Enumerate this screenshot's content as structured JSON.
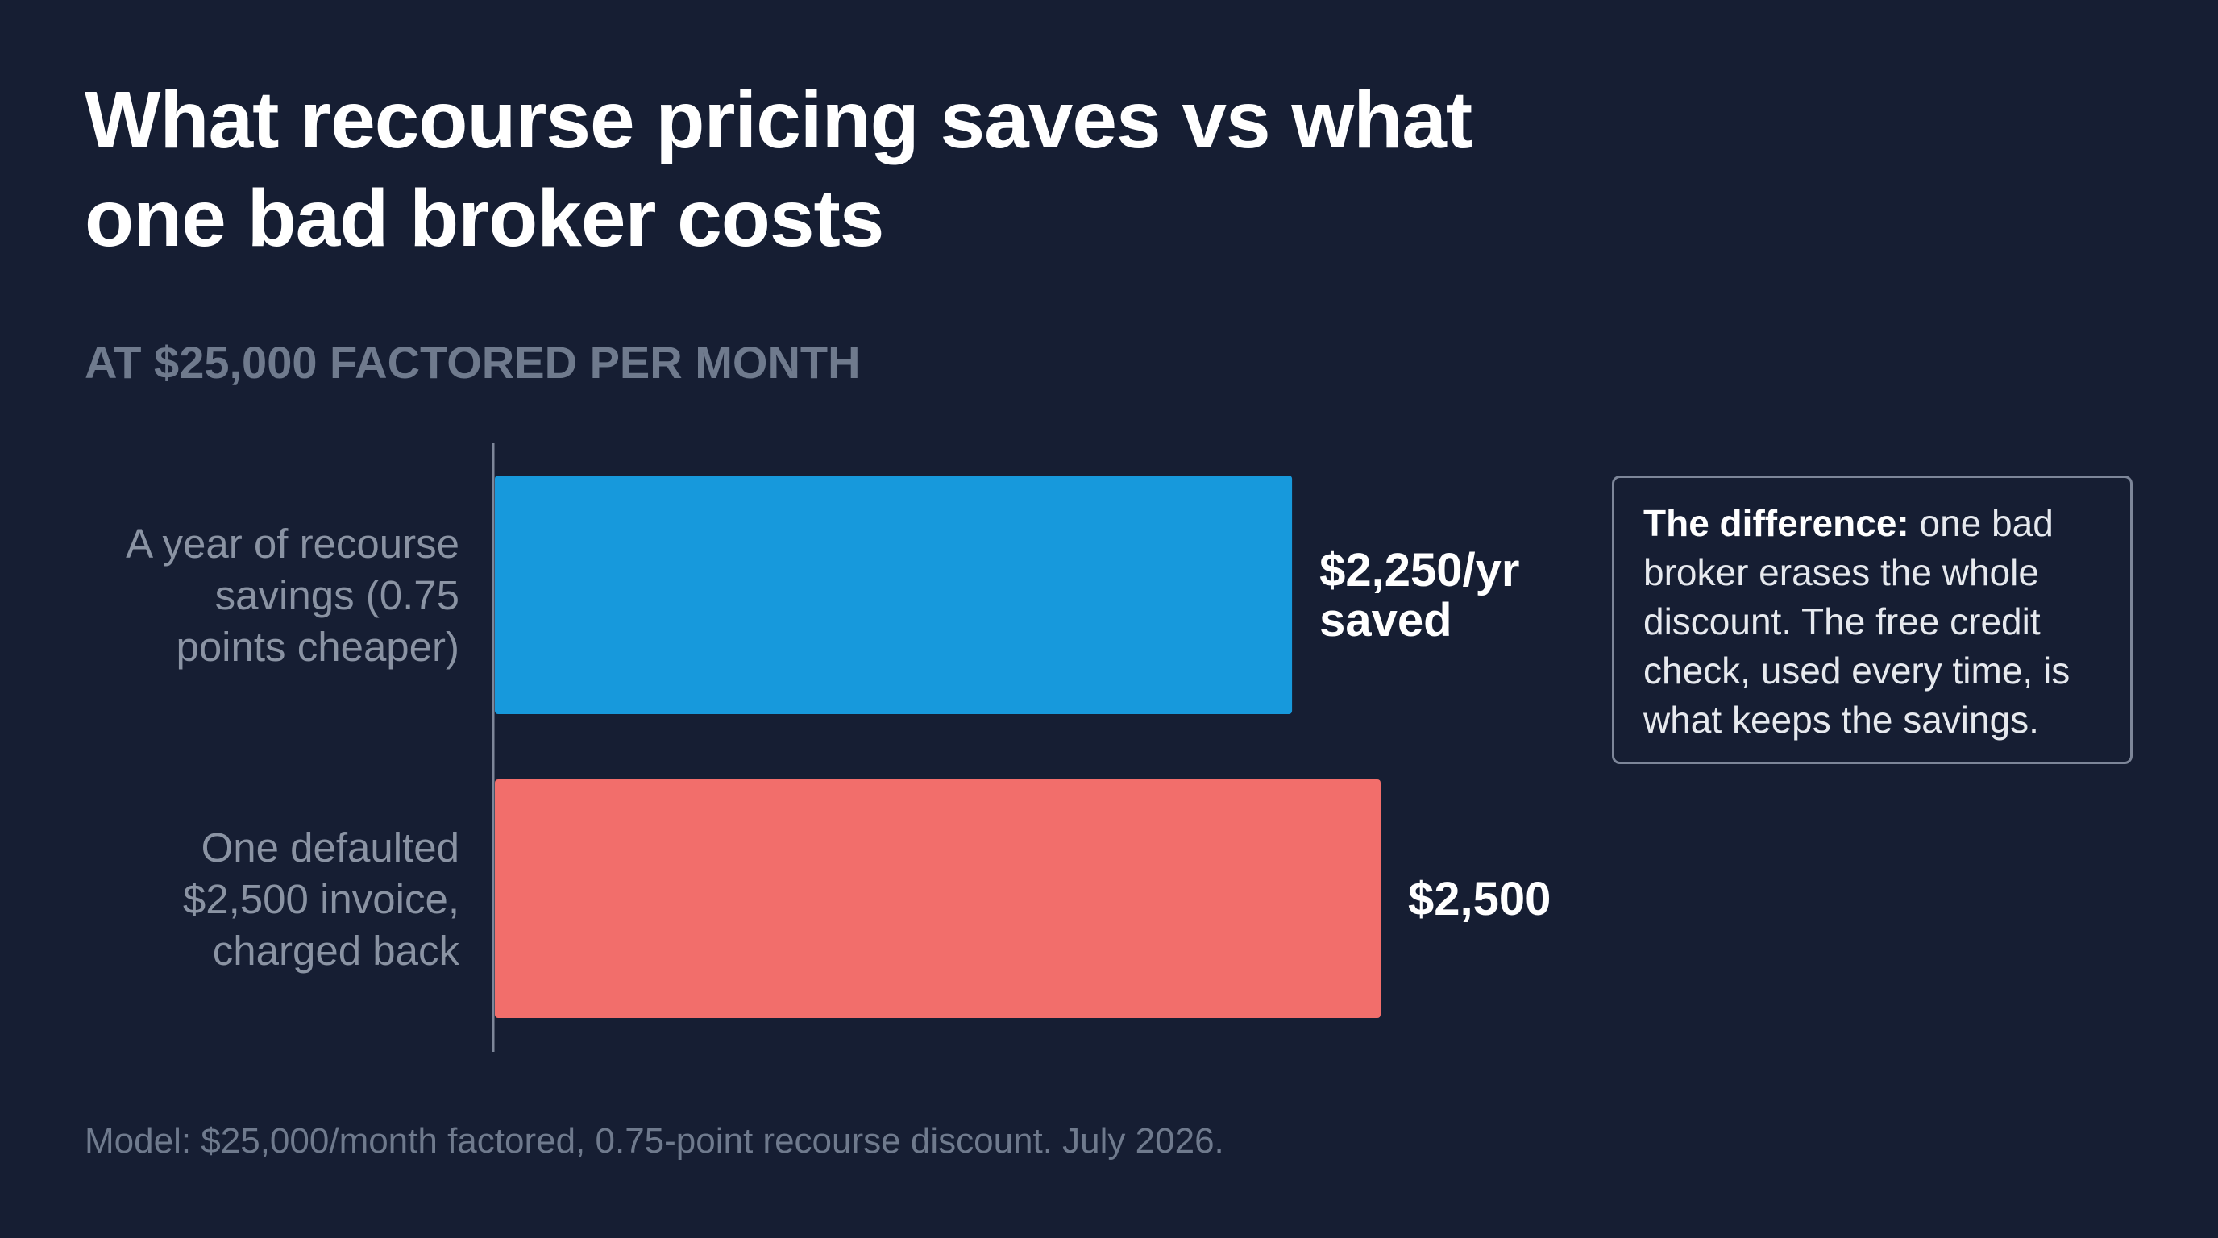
{
  "title": "What recourse pricing saves vs what one bad broker costs",
  "subtitle": "AT $25,000 FACTORED PER MONTH",
  "callout": {
    "lead": "The difference:",
    "body": " one bad broker erases the whole discount. The free credit check, used every time, is what keeps the savings."
  },
  "footnote": "Model: $25,000/month factored, 0.75-point recourse discount. July 2026.",
  "colors": {
    "background": "#161e33",
    "savings_bar": "#1799dc",
    "cost_bar": "#f26e6b"
  },
  "chart_data": {
    "type": "bar",
    "orientation": "horizontal",
    "categories": [
      "A year of recourse savings (0.75 points cheaper)",
      "One defaulted $2,500 invoice, charged back"
    ],
    "category_label_lines": [
      [
        "A year of recourse",
        "savings (0.75",
        "points cheaper)"
      ],
      [
        "One defaulted",
        "$2,500 invoice,",
        "charged back"
      ]
    ],
    "values": [
      2250,
      2500
    ],
    "value_labels": [
      [
        "$2,250/yr",
        "saved"
      ],
      [
        "$2,500"
      ]
    ],
    "bar_colors": [
      "#1799dc",
      "#f26e6b"
    ],
    "xlabel": "",
    "ylabel": "",
    "grid": false,
    "legend": "none"
  }
}
